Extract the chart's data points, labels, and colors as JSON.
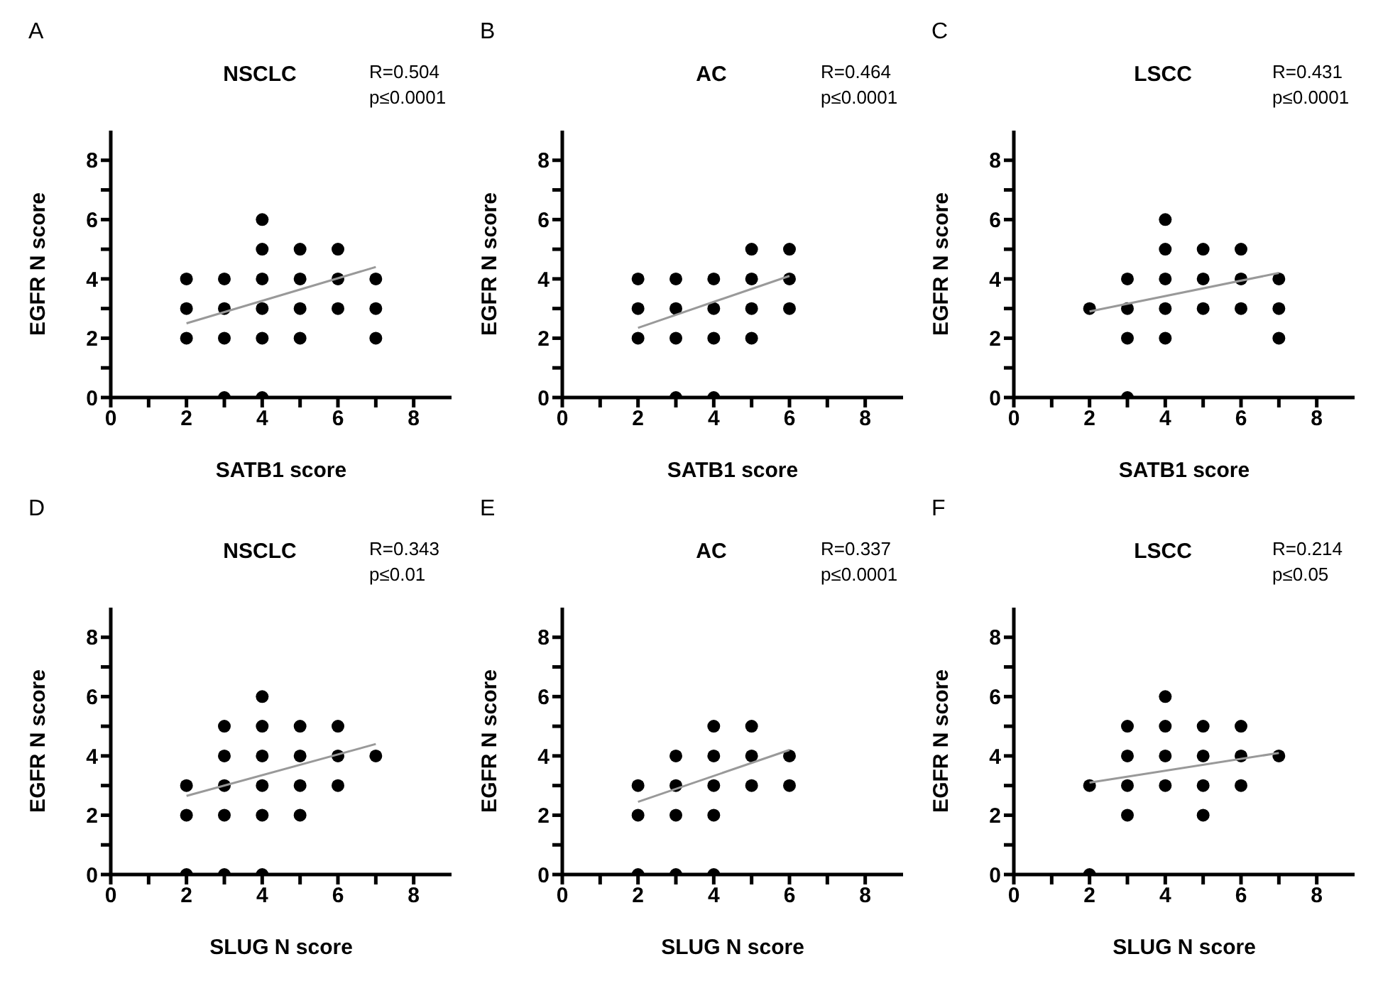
{
  "chart_data": [
    {
      "type": "scatter",
      "title": "NSCLC",
      "xlabel": "SATB1 score",
      "ylabel": "EGFR N score",
      "annotations": [
        "A",
        "R=0.504",
        "p≤0.0001"
      ],
      "xlim": [
        0,
        9
      ],
      "ylim": [
        0,
        9
      ],
      "xticks": [
        0,
        {
          "value": 1,
          "label": null
        },
        2,
        {
          "value": 3,
          "label": null
        },
        4,
        {
          "value": 5,
          "label": null
        },
        6,
        {
          "value": 7,
          "label": null
        },
        8
      ],
      "yticks": [
        0,
        {
          "value": 1,
          "label": null
        },
        2,
        {
          "value": 3,
          "label": null
        },
        4,
        {
          "value": 5,
          "label": null
        },
        6,
        {
          "value": 7,
          "label": null
        },
        8
      ],
      "series": [
        {
          "type": "scatter",
          "color": "#000000",
          "marker": "circle",
          "x": [
            2,
            2,
            2,
            3,
            3,
            3,
            3,
            4,
            4,
            4,
            4,
            4,
            4,
            5,
            5,
            5,
            5,
            6,
            6,
            6,
            7,
            7,
            7
          ],
          "values": [
            4,
            3,
            2,
            4,
            3,
            2,
            0,
            6,
            5,
            4,
            3,
            2,
            0,
            5,
            4,
            3,
            2,
            5,
            4,
            3,
            4,
            3,
            2
          ]
        },
        {
          "type": "line",
          "color": "#999999",
          "marker": "none",
          "x": [
            2,
            7
          ],
          "values": [
            2.5,
            4.4
          ]
        }
      ]
    },
    {
      "type": "scatter",
      "title": "AC",
      "xlabel": "SATB1 score",
      "ylabel": "EGFR N score",
      "annotations": [
        "B",
        "R=0.464",
        "p≤0.0001"
      ],
      "xlim": [
        0,
        9
      ],
      "ylim": [
        0,
        9
      ],
      "xticks": [
        0,
        {
          "value": 1,
          "label": null
        },
        2,
        {
          "value": 3,
          "label": null
        },
        4,
        {
          "value": 5,
          "label": null
        },
        6,
        {
          "value": 7,
          "label": null
        },
        8
      ],
      "yticks": [
        0,
        {
          "value": 1,
          "label": null
        },
        2,
        {
          "value": 3,
          "label": null
        },
        4,
        {
          "value": 5,
          "label": null
        },
        6,
        {
          "value": 7,
          "label": null
        },
        8
      ],
      "series": [
        {
          "type": "scatter",
          "color": "#000000",
          "marker": "circle",
          "x": [
            2,
            2,
            2,
            3,
            3,
            3,
            3,
            4,
            4,
            4,
            4,
            5,
            5,
            5,
            5,
            6,
            6,
            6
          ],
          "values": [
            4,
            3,
            2,
            4,
            3,
            2,
            0,
            4,
            3,
            2,
            0,
            5,
            4,
            3,
            2,
            5,
            4,
            3
          ]
        },
        {
          "type": "line",
          "color": "#999999",
          "marker": "none",
          "x": [
            2,
            6
          ],
          "values": [
            2.35,
            4.1
          ]
        }
      ]
    },
    {
      "type": "scatter",
      "title": "LSCC",
      "xlabel": "SATB1 score",
      "ylabel": "EGFR N score",
      "annotations": [
        "C",
        "R=0.431",
        "p≤0.0001"
      ],
      "xlim": [
        0,
        9
      ],
      "ylim": [
        0,
        9
      ],
      "xticks": [
        0,
        {
          "value": 1,
          "label": null
        },
        2,
        {
          "value": 3,
          "label": null
        },
        4,
        {
          "value": 5,
          "label": null
        },
        6,
        {
          "value": 7,
          "label": null
        },
        8
      ],
      "yticks": [
        0,
        {
          "value": 1,
          "label": null
        },
        2,
        {
          "value": 3,
          "label": null
        },
        4,
        {
          "value": 5,
          "label": null
        },
        6,
        {
          "value": 7,
          "label": null
        },
        8
      ],
      "series": [
        {
          "type": "scatter",
          "color": "#000000",
          "marker": "circle",
          "x": [
            2,
            3,
            3,
            3,
            3,
            4,
            4,
            4,
            4,
            4,
            5,
            5,
            5,
            6,
            6,
            6,
            7,
            7,
            7
          ],
          "values": [
            3,
            4,
            3,
            2,
            0,
            6,
            5,
            4,
            3,
            2,
            5,
            4,
            3,
            5,
            4,
            3,
            4,
            3,
            2
          ]
        },
        {
          "type": "line",
          "color": "#999999",
          "marker": "none",
          "x": [
            2,
            7
          ],
          "values": [
            2.9,
            4.2
          ]
        }
      ]
    },
    {
      "type": "scatter",
      "title": "NSCLC",
      "xlabel": "SLUG N score",
      "ylabel": "EGFR N score",
      "annotations": [
        "D",
        "R=0.343",
        "p≤0.01"
      ],
      "xlim": [
        0,
        9
      ],
      "ylim": [
        0,
        9
      ],
      "xticks": [
        0,
        {
          "value": 1,
          "label": null
        },
        2,
        {
          "value": 3,
          "label": null
        },
        4,
        {
          "value": 5,
          "label": null
        },
        6,
        {
          "value": 7,
          "label": null
        },
        8
      ],
      "yticks": [
        0,
        {
          "value": 1,
          "label": null
        },
        2,
        {
          "value": 3,
          "label": null
        },
        4,
        {
          "value": 5,
          "label": null
        },
        6,
        {
          "value": 7,
          "label": null
        },
        8
      ],
      "series": [
        {
          "type": "scatter",
          "color": "#000000",
          "marker": "circle",
          "x": [
            2,
            2,
            2,
            3,
            3,
            3,
            3,
            3,
            4,
            4,
            4,
            4,
            4,
            4,
            5,
            5,
            5,
            5,
            6,
            6,
            6,
            7
          ],
          "values": [
            3,
            2,
            0,
            5,
            4,
            3,
            2,
            0,
            6,
            5,
            4,
            3,
            2,
            0,
            5,
            4,
            3,
            2,
            5,
            4,
            3,
            4
          ]
        },
        {
          "type": "line",
          "color": "#999999",
          "marker": "none",
          "x": [
            2,
            7
          ],
          "values": [
            2.65,
            4.4
          ]
        }
      ]
    },
    {
      "type": "scatter",
      "title": "AC",
      "xlabel": "SLUG N score",
      "ylabel": "EGFR N score",
      "annotations": [
        "E",
        "R=0.337",
        "p≤0.0001"
      ],
      "xlim": [
        0,
        9
      ],
      "ylim": [
        0,
        9
      ],
      "xticks": [
        0,
        {
          "value": 1,
          "label": null
        },
        2,
        {
          "value": 3,
          "label": null
        },
        4,
        {
          "value": 5,
          "label": null
        },
        6,
        {
          "value": 7,
          "label": null
        },
        8
      ],
      "yticks": [
        0,
        {
          "value": 1,
          "label": null
        },
        2,
        {
          "value": 3,
          "label": null
        },
        4,
        {
          "value": 5,
          "label": null
        },
        6,
        {
          "value": 7,
          "label": null
        },
        8
      ],
      "series": [
        {
          "type": "scatter",
          "color": "#000000",
          "marker": "circle",
          "x": [
            2,
            2,
            2,
            3,
            3,
            3,
            3,
            4,
            4,
            4,
            4,
            4,
            5,
            5,
            5,
            6,
            6
          ],
          "values": [
            3,
            2,
            0,
            4,
            3,
            2,
            0,
            5,
            4,
            3,
            2,
            0,
            5,
            4,
            3,
            4,
            3
          ]
        },
        {
          "type": "line",
          "color": "#999999",
          "marker": "none",
          "x": [
            2,
            6
          ],
          "values": [
            2.45,
            4.2
          ]
        }
      ]
    },
    {
      "type": "scatter",
      "title": "LSCC",
      "xlabel": "SLUG N score",
      "ylabel": "EGFR N score",
      "annotations": [
        "F",
        "R=0.214",
        "p≤0.05"
      ],
      "xlim": [
        0,
        9
      ],
      "ylim": [
        0,
        9
      ],
      "xticks": [
        0,
        {
          "value": 1,
          "label": null
        },
        2,
        {
          "value": 3,
          "label": null
        },
        4,
        {
          "value": 5,
          "label": null
        },
        6,
        {
          "value": 7,
          "label": null
        },
        8
      ],
      "yticks": [
        0,
        {
          "value": 1,
          "label": null
        },
        2,
        {
          "value": 3,
          "label": null
        },
        4,
        {
          "value": 5,
          "label": null
        },
        6,
        {
          "value": 7,
          "label": null
        },
        8
      ],
      "series": [
        {
          "type": "scatter",
          "color": "#000000",
          "marker": "circle",
          "x": [
            2,
            2,
            3,
            3,
            3,
            3,
            4,
            4,
            4,
            4,
            5,
            5,
            5,
            5,
            6,
            6,
            6,
            7
          ],
          "values": [
            3,
            0,
            5,
            4,
            3,
            2,
            6,
            5,
            4,
            3,
            5,
            4,
            3,
            2,
            5,
            4,
            3,
            4
          ]
        },
        {
          "type": "line",
          "color": "#999999",
          "marker": "none",
          "x": [
            2,
            7
          ],
          "values": [
            3.1,
            4.1
          ]
        }
      ]
    }
  ]
}
